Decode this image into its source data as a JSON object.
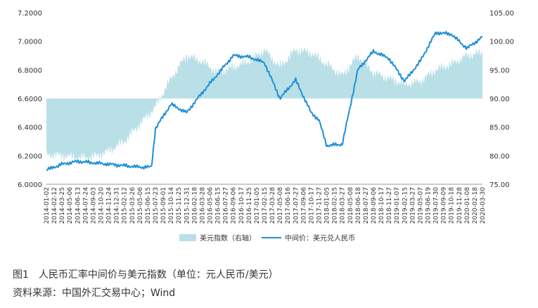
{
  "figure": {
    "caption": "图1　人民币汇率中间价与美元指数（单位：元人民币/美元）",
    "source": "资料来源：中国外汇交易中心；Wind"
  },
  "colors": {
    "usd_index_fill": "#b9e0e6",
    "cny_line": "#1f8fd6",
    "axis": "#999999",
    "text": "#333333"
  },
  "chart_data": {
    "type": "line",
    "left_axis": {
      "min": 6.0,
      "max": 7.2,
      "ticks": [
        "6.0000",
        "6.2000",
        "6.4000",
        "6.6000",
        "6.8000",
        "7.0000",
        "7.2000"
      ]
    },
    "right_axis": {
      "min": 75,
      "max": 105,
      "ticks": [
        "75.00",
        "80.00",
        "85.00",
        "90.00",
        "95.00",
        "100.00",
        "105.00"
      ]
    },
    "area_baseline": 90,
    "x_tick_labels": [
      "2014-01-02",
      "2014-02-12",
      "2014-03-25",
      "2014-05-06",
      "2014-06-13",
      "2014-07-24",
      "2014-09-03",
      "2014-10-20",
      "2014-11-24",
      "2014-12-31",
      "2015-02-12",
      "2015-03-26",
      "2015-05-06",
      "2015-06-15",
      "2015-07-23",
      "2015-09-01",
      "2015-10-14",
      "2015-11-25",
      "2015-12-31",
      "2016-02-18",
      "2016-03-28",
      "2016-05-06",
      "2016-06-15",
      "2016-07-27",
      "2016-09-06",
      "2016-10-17",
      "2016-11-25",
      "2017-01-05",
      "2017-02-15",
      "2017-03-28",
      "2017-05-08",
      "2017-06-16",
      "2017-07-27",
      "2017-09-06",
      "2017-10-17",
      "2017-11-27",
      "2018-01-05",
      "2018-02-15",
      "2018-03-27",
      "2018-05-08",
      "2018-06-18",
      "2018-07-27",
      "2018-09-06",
      "2018-10-17",
      "2018-11-27",
      "2019-01-07",
      "2019-02-15",
      "2019-03-27",
      "2019-05-07",
      "2019-06-19",
      "2019-07-30",
      "2019-09-09",
      "2019-10-18",
      "2019-11-28",
      "2020-01-08",
      "2020-02-18",
      "2020-03-30"
    ],
    "legend": [
      {
        "name": "美元指数（右轴）",
        "kind": "area"
      },
      {
        "name": "中间价：美元兑人民币",
        "kind": "line"
      }
    ],
    "legend_position": "bottom",
    "series": [
      {
        "name": "美元指数（右轴）",
        "axis": "right",
        "x_index": [
          0,
          2,
          4,
          6,
          8,
          10,
          12,
          14,
          16,
          18,
          20,
          22,
          24,
          26,
          28,
          30,
          32,
          34,
          36,
          38,
          40,
          42,
          44,
          46,
          48,
          50,
          52,
          54,
          56
        ],
        "values": [
          80.2,
          80.0,
          79.6,
          79.8,
          80.8,
          82.5,
          85.5,
          88.5,
          93.5,
          97.5,
          96.5,
          94.5,
          95.5,
          96.5,
          98.5,
          95.5,
          98.5,
          98.0,
          96.0,
          94.0,
          97.5,
          94.5,
          93.5,
          92.5,
          93.0,
          95.0,
          96.0,
          97.5,
          98.0
        ]
      },
      {
        "name": "中间价：美元兑人民币",
        "axis": "left",
        "x_index": [
          0,
          2,
          4,
          6,
          8,
          10,
          12,
          13.5,
          14,
          16,
          18,
          20,
          22,
          24,
          26,
          28,
          30,
          32,
          34,
          35,
          36,
          38,
          40,
          42,
          44,
          46,
          48,
          50,
          52,
          54,
          56
        ],
        "values": [
          6.1,
          6.14,
          6.16,
          6.15,
          6.14,
          6.13,
          6.12,
          6.12,
          6.39,
          6.56,
          6.5,
          6.64,
          6.77,
          6.9,
          6.89,
          6.85,
          6.6,
          6.73,
          6.5,
          6.45,
          6.27,
          6.28,
          6.8,
          6.93,
          6.88,
          6.72,
          6.86,
          7.06,
          7.05,
          6.95,
          7.03
        ]
      }
    ]
  }
}
